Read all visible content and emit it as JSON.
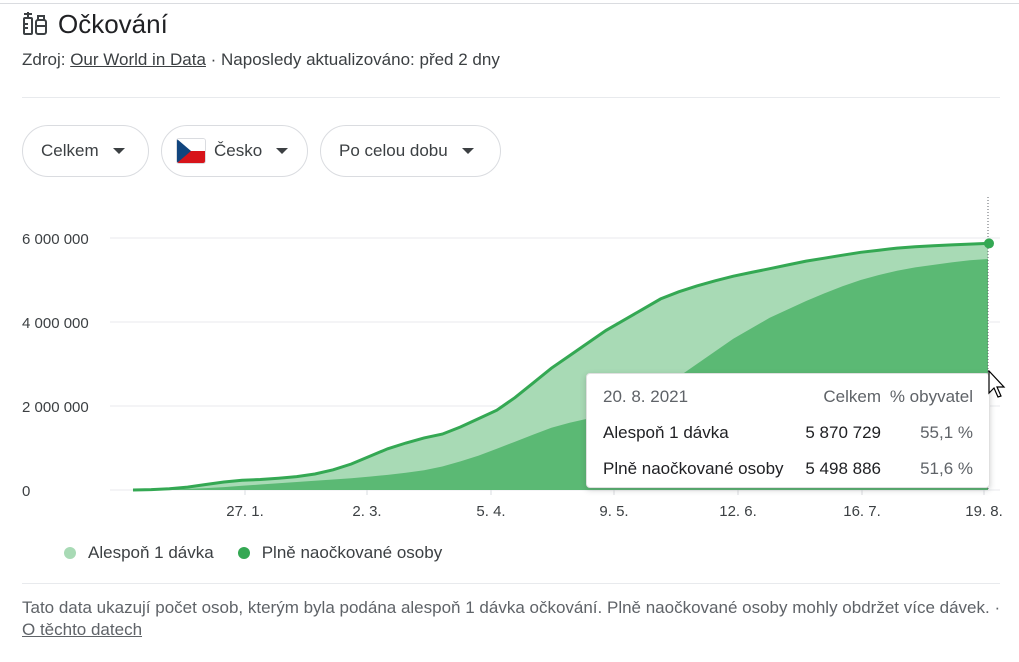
{
  "header": {
    "title": "Očkování",
    "source_prefix": "Zdroj: ",
    "source_link": "Our World in Data",
    "updated": " · Naposledy aktualizováno: před 2 dny"
  },
  "filters": {
    "metric": "Celkem",
    "country": "Česko",
    "period": "Po celou dobu"
  },
  "tooltip": {
    "date": "20. 8. 2021",
    "col_total": "Celkem",
    "col_pct": "% obyvatel",
    "rows": [
      {
        "label": "Alespoň 1 dávka",
        "total": "5 870 729",
        "pct": "55,1 %"
      },
      {
        "label": "Plně naočkované osoby",
        "total": "5 498 886",
        "pct": "51,6 %"
      }
    ]
  },
  "legend": {
    "one_dose": "Alespoň 1 dávka",
    "full": "Plně naočkované osoby"
  },
  "footnote": {
    "text": "Tato data ukazují počet osob, kterým byla podána alespoň 1 dávka očkování. Plně naočkované osoby mohly obdržet více dávek.",
    "sep": " · ",
    "link": "O těchto datech"
  },
  "colors": {
    "one_dose": "#a8dab5",
    "full": "#5bb974",
    "line": "#34a853",
    "grid": "#e8eaed"
  },
  "chart_data": {
    "type": "area",
    "x_ticks": [
      "27. 1.",
      "2. 3.",
      "5. 4.",
      "9. 5.",
      "12. 6.",
      "16. 7.",
      "19. 8."
    ],
    "y_ticks": [
      "0",
      "2 000 000",
      "4 000 000",
      "6 000 000"
    ],
    "ylim": [
      0,
      6500000
    ],
    "x": [
      0,
      5,
      10,
      15,
      20,
      25,
      30,
      35,
      40,
      45,
      50,
      55,
      60,
      65,
      70,
      75,
      80,
      85,
      90,
      95,
      100,
      105,
      110,
      115,
      120,
      125,
      130,
      135,
      140,
      145,
      150,
      155,
      160,
      165,
      170,
      175,
      180,
      185,
      190,
      195,
      200,
      205,
      210,
      215,
      220,
      225,
      230,
      235
    ],
    "series": [
      {
        "name": "Alespoň 1 dávka",
        "values": [
          0,
          10000,
          30000,
          70000,
          130000,
          190000,
          230000,
          250000,
          280000,
          320000,
          380000,
          480000,
          620000,
          800000,
          980000,
          1120000,
          1240000,
          1330000,
          1500000,
          1700000,
          1900000,
          2200000,
          2550000,
          2900000,
          3200000,
          3500000,
          3800000,
          4050000,
          4300000,
          4550000,
          4720000,
          4860000,
          4980000,
          5090000,
          5180000,
          5270000,
          5360000,
          5450000,
          5520000,
          5590000,
          5660000,
          5710000,
          5760000,
          5790000,
          5815000,
          5835000,
          5855000,
          5870729
        ]
      },
      {
        "name": "Plně naočkované osoby",
        "values": [
          0,
          3000,
          10000,
          25000,
          45000,
          70000,
          100000,
          130000,
          160000,
          190000,
          220000,
          250000,
          280000,
          320000,
          360000,
          410000,
          470000,
          560000,
          680000,
          820000,
          980000,
          1150000,
          1320000,
          1480000,
          1600000,
          1700000,
          1800000,
          1950000,
          2150000,
          2400000,
          2700000,
          3000000,
          3300000,
          3600000,
          3850000,
          4100000,
          4300000,
          4500000,
          4680000,
          4850000,
          5000000,
          5120000,
          5220000,
          5300000,
          5360000,
          5420000,
          5470000,
          5498886
        ]
      }
    ]
  }
}
